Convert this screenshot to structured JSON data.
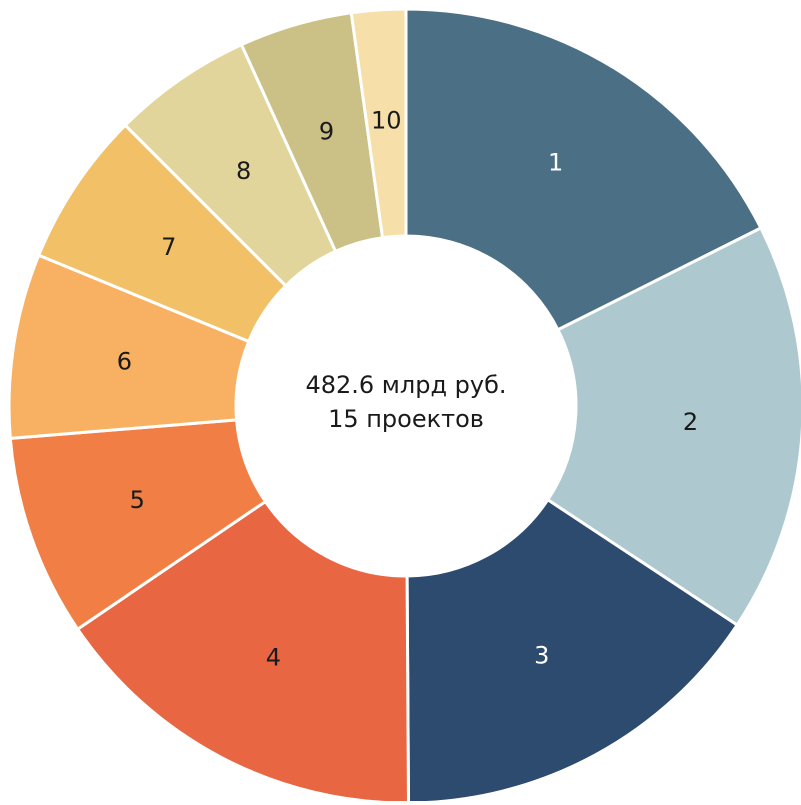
{
  "chart_data": {
    "type": "donut",
    "categories": [
      "1",
      "2",
      "3",
      "4",
      "5",
      "6",
      "7",
      "8",
      "9",
      "10"
    ],
    "values": [
      17.6,
      16.7,
      15.6,
      15.6,
      8.2,
      7.5,
      6.3,
      5.7,
      4.6,
      2.2
    ],
    "colors": [
      "#4b6f84",
      "#adc9cf",
      "#2c4b6e",
      "#e86642",
      "#f17f45",
      "#f8b162",
      "#f2c066",
      "#e2d59b",
      "#cbc085",
      "#f7dfaa"
    ],
    "center_text": [
      "482.6 млрд руб.",
      "15 проектов"
    ]
  }
}
